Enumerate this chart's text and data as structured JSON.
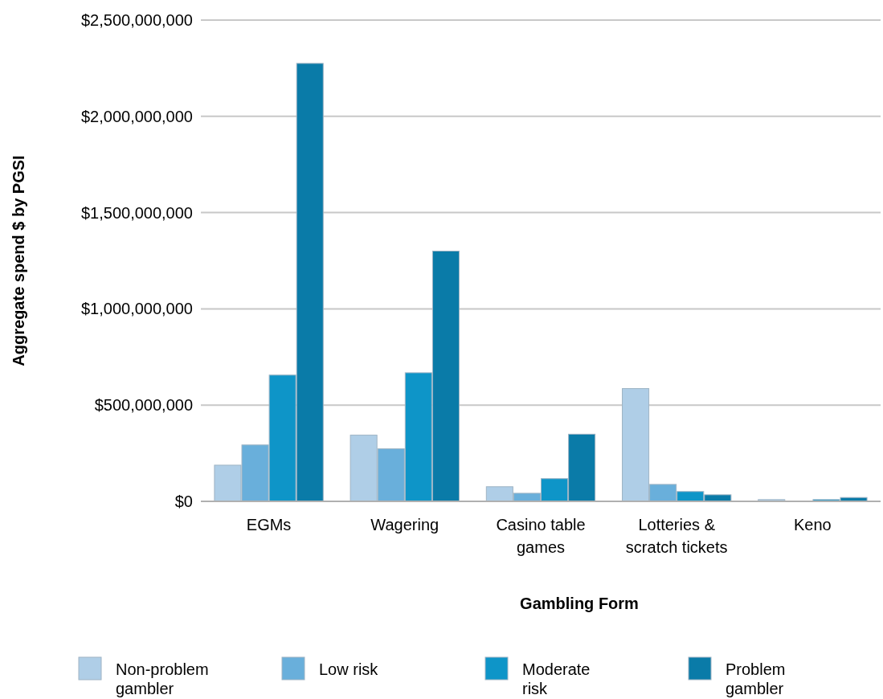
{
  "chart_data": {
    "type": "bar",
    "xlabel": "Gambling Form",
    "ylabel": "Aggregate spend $ by PGSI",
    "categories": [
      "EGMs",
      "Wagering",
      "Casino table games",
      "Lotteries & scratch tickets",
      "Keno"
    ],
    "series": [
      {
        "name": "Non-problem gambler",
        "color": "#afcee7",
        "values": [
          188000000,
          344000000,
          76000000,
          586000000,
          9000000
        ]
      },
      {
        "name": "Low risk",
        "color": "#69afdb",
        "values": [
          293000000,
          273000000,
          42000000,
          88000000,
          1000000
        ]
      },
      {
        "name": "Moderate risk",
        "color": "#0e95c8",
        "values": [
          656000000,
          668000000,
          118000000,
          51000000,
          9000000
        ]
      },
      {
        "name": "Problem gambler",
        "color": "#0a7ba8",
        "values": [
          2275000000,
          1300000000,
          349000000,
          34000000,
          20000000
        ]
      }
    ],
    "ylim": [
      0,
      2500000000
    ],
    "yticks": [
      {
        "value": 0,
        "label": "$0"
      },
      {
        "value": 500000000,
        "label": "$500,000,000"
      },
      {
        "value": 1000000000,
        "label": "$1,000,000,000"
      },
      {
        "value": 1500000000,
        "label": "$1,500,000,000"
      },
      {
        "value": 2000000000,
        "label": "$2,000,000,000"
      },
      {
        "value": 2500000000,
        "label": "$2,500,000,000"
      }
    ],
    "grid": "y",
    "legend": "bottom"
  }
}
